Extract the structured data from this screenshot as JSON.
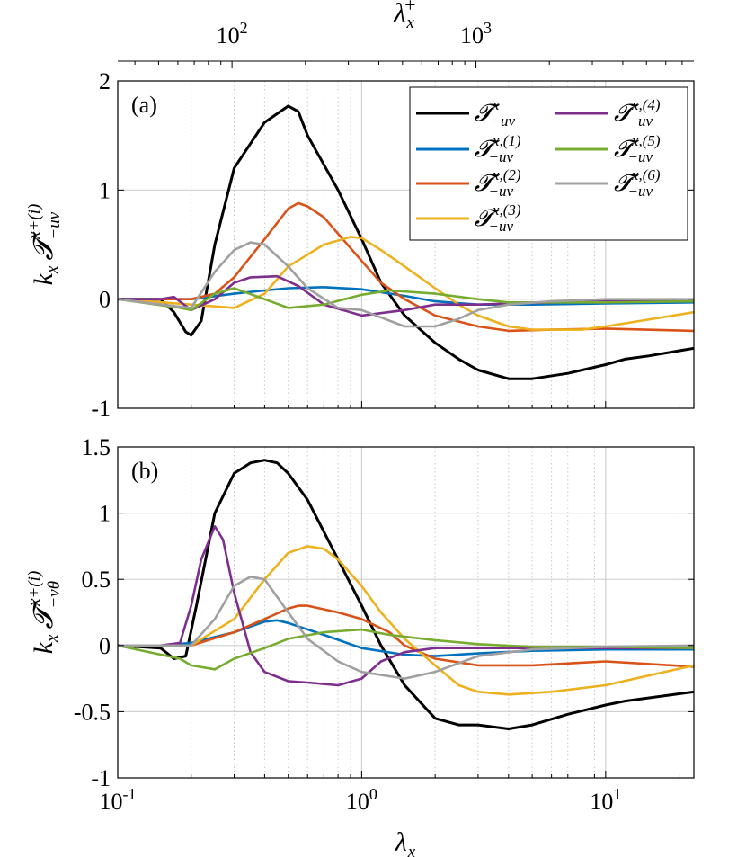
{
  "colors": {
    "total": "#000000",
    "m1": "#0072BD",
    "m2": "#D95319",
    "m3": "#EDB120",
    "m4": "#7E2F8E",
    "m5": "#77AC30",
    "m6": "#A0A0A0"
  },
  "chart_data": [
    {
      "type": "line",
      "panel_label": "(a)",
      "xscale": "log",
      "xlim": [
        0.1,
        23
      ],
      "ylim": [
        -1,
        2
      ],
      "xlabel": "λ_x",
      "ylabel": "k_x T_{-uv}^{x+(i)}",
      "ytick_values": [
        -1,
        0,
        1,
        2
      ],
      "ytick_labels": [
        "-1",
        "0",
        "1",
        "2"
      ],
      "legend_position": "top-right",
      "grid": true,
      "top_axis": {
        "xlabel": "λ_x^+",
        "tick_labels": [
          {
            "text": "10",
            "exp": "2",
            "lambda": 0.294
          },
          {
            "text": "10",
            "exp": "3",
            "lambda": 2.94
          }
        ]
      },
      "series": [
        {
          "key": "total",
          "name": "T^x_{-uv}",
          "x": [
            0.1,
            0.15,
            0.17,
            0.19,
            0.2,
            0.22,
            0.25,
            0.3,
            0.4,
            0.5,
            0.55,
            0.6,
            0.8,
            1.0,
            1.2,
            1.5,
            2,
            2.5,
            3,
            4,
            5,
            7,
            10,
            12,
            15,
            23
          ],
          "y": [
            0,
            0,
            -0.12,
            -0.3,
            -0.33,
            -0.2,
            0.5,
            1.2,
            1.62,
            1.77,
            1.72,
            1.5,
            1.0,
            0.55,
            0.15,
            -0.15,
            -0.4,
            -0.55,
            -0.65,
            -0.73,
            -0.73,
            -0.68,
            -0.6,
            -0.55,
            -0.52,
            -0.45
          ]
        },
        {
          "key": "m1",
          "name": "T^{x,(1)}_{-uv}",
          "x": [
            0.1,
            0.15,
            0.2,
            0.3,
            0.4,
            0.5,
            0.7,
            1.0,
            1.5,
            2,
            3,
            5,
            10,
            23
          ],
          "y": [
            0,
            0,
            0,
            0.05,
            0.08,
            0.1,
            0.11,
            0.09,
            0.03,
            -0.02,
            -0.05,
            -0.05,
            -0.04,
            -0.03
          ]
        },
        {
          "key": "m2",
          "name": "T^{x,(2)}_{-uv}",
          "x": [
            0.1,
            0.2,
            0.25,
            0.3,
            0.4,
            0.5,
            0.55,
            0.6,
            0.7,
            0.8,
            1.0,
            1.2,
            1.5,
            2,
            3,
            4,
            6,
            10,
            23
          ],
          "y": [
            0,
            0,
            0.05,
            0.2,
            0.55,
            0.83,
            0.88,
            0.85,
            0.75,
            0.6,
            0.35,
            0.15,
            0,
            -0.15,
            -0.25,
            -0.29,
            -0.28,
            -0.27,
            -0.29
          ]
        },
        {
          "key": "m3",
          "name": "T^{x,(3)}_{-uv}",
          "x": [
            0.1,
            0.2,
            0.3,
            0.4,
            0.5,
            0.7,
            0.9,
            1.0,
            1.2,
            1.5,
            2,
            2.5,
            3,
            4,
            5,
            8,
            10,
            23
          ],
          "y": [
            0,
            -0.05,
            -0.08,
            0.05,
            0.3,
            0.5,
            0.57,
            0.56,
            0.45,
            0.3,
            0.1,
            -0.05,
            -0.15,
            -0.25,
            -0.28,
            -0.28,
            -0.25,
            -0.12
          ]
        },
        {
          "key": "m4",
          "name": "T^{x,(4)}_{-uv}",
          "x": [
            0.1,
            0.15,
            0.17,
            0.2,
            0.25,
            0.3,
            0.35,
            0.45,
            0.55,
            0.7,
            1.0,
            1.5,
            2,
            3,
            4,
            10,
            23
          ],
          "y": [
            0,
            0,
            0.02,
            -0.1,
            0,
            0.15,
            0.2,
            0.21,
            0.12,
            -0.05,
            -0.15,
            -0.1,
            -0.05,
            -0.05,
            -0.04,
            -0.02,
            -0.02
          ]
        },
        {
          "key": "m5",
          "name": "T^{x,(5)}_{-uv}",
          "x": [
            0.1,
            0.18,
            0.2,
            0.25,
            0.3,
            0.4,
            0.5,
            0.7,
            1.0,
            1.3,
            2,
            3,
            4,
            6,
            10,
            23
          ],
          "y": [
            0,
            -0.08,
            -0.1,
            0.05,
            0.1,
            0,
            -0.08,
            -0.05,
            0.04,
            0.08,
            0.05,
            0,
            -0.03,
            -0.03,
            -0.03,
            -0.02
          ]
        },
        {
          "key": "m6",
          "name": "T^{x,(6)}_{-uv}",
          "x": [
            0.1,
            0.15,
            0.2,
            0.25,
            0.3,
            0.35,
            0.4,
            0.5,
            0.6,
            0.8,
            1.0,
            1.5,
            2,
            2.5,
            3,
            4,
            6,
            10,
            23
          ],
          "y": [
            0,
            -0.05,
            -0.08,
            0.25,
            0.45,
            0.52,
            0.5,
            0.3,
            0.1,
            -0.08,
            -0.1,
            -0.25,
            -0.25,
            -0.18,
            -0.1,
            -0.05,
            -0.02,
            0,
            0
          ]
        }
      ]
    },
    {
      "type": "line",
      "panel_label": "(b)",
      "xscale": "log",
      "xlim": [
        0.1,
        23
      ],
      "ylim": [
        -1,
        1.5
      ],
      "xlabel": "λ_x",
      "ylabel": "k_x T_{-vθ}^{x+(i)}",
      "ytick_values": [
        -1,
        -0.5,
        0,
        0.5,
        1,
        1.5
      ],
      "ytick_labels": [
        "-1",
        "-0.5",
        "0",
        "0.5",
        "1",
        "1.5"
      ],
      "grid": true,
      "xtick_labels": [
        {
          "text": "10",
          "exp": "-1",
          "lambda": 0.1
        },
        {
          "text": "10",
          "exp": "0",
          "lambda": 1
        },
        {
          "text": "10",
          "exp": "1",
          "lambda": 10
        }
      ],
      "series": [
        {
          "key": "total",
          "name": "T^x_{-vθ}",
          "x": [
            0.1,
            0.15,
            0.17,
            0.19,
            0.21,
            0.25,
            0.3,
            0.35,
            0.4,
            0.45,
            0.5,
            0.6,
            0.8,
            1.0,
            1.2,
            1.5,
            2,
            2.5,
            3,
            4,
            5,
            7,
            10,
            12,
            23
          ],
          "y": [
            0,
            -0.02,
            -0.1,
            -0.08,
            0.3,
            1.0,
            1.3,
            1.38,
            1.4,
            1.38,
            1.3,
            1.1,
            0.65,
            0.3,
            0,
            -0.3,
            -0.55,
            -0.6,
            -0.6,
            -0.63,
            -0.6,
            -0.52,
            -0.45,
            -0.42,
            -0.35
          ]
        },
        {
          "key": "m1",
          "name": "T^{x,(1)}_{-vθ}",
          "x": [
            0.1,
            0.15,
            0.2,
            0.3,
            0.4,
            0.45,
            0.5,
            0.7,
            1.0,
            1.5,
            2,
            3,
            5,
            10,
            23
          ],
          "y": [
            0,
            0,
            0.02,
            0.1,
            0.18,
            0.19,
            0.17,
            0.08,
            -0.02,
            -0.07,
            -0.08,
            -0.06,
            -0.04,
            -0.03,
            -0.03
          ]
        },
        {
          "key": "m2",
          "name": "T^{x,(2)}_{-vθ}",
          "x": [
            0.1,
            0.2,
            0.3,
            0.4,
            0.5,
            0.55,
            0.6,
            0.8,
            1.0,
            1.3,
            1.5,
            2,
            3,
            5,
            10,
            23
          ],
          "y": [
            0,
            0,
            0.1,
            0.2,
            0.28,
            0.3,
            0.3,
            0.25,
            0.2,
            0.1,
            0,
            -0.1,
            -0.15,
            -0.15,
            -0.12,
            -0.16
          ]
        },
        {
          "key": "m3",
          "name": "T^{x,(3)}_{-vθ}",
          "x": [
            0.1,
            0.2,
            0.3,
            0.4,
            0.5,
            0.6,
            0.7,
            0.8,
            1.0,
            1.2,
            1.5,
            2,
            2.5,
            3,
            4,
            6,
            10,
            23
          ],
          "y": [
            0,
            0,
            0.2,
            0.5,
            0.7,
            0.75,
            0.73,
            0.65,
            0.45,
            0.25,
            0.05,
            -0.15,
            -0.3,
            -0.35,
            -0.37,
            -0.35,
            -0.3,
            -0.15
          ]
        },
        {
          "key": "m4",
          "name": "T^{x,(4)}_{-vθ}",
          "x": [
            0.1,
            0.15,
            0.18,
            0.2,
            0.22,
            0.25,
            0.27,
            0.3,
            0.35,
            0.4,
            0.5,
            0.6,
            0.8,
            1.0,
            1.2,
            1.5,
            2,
            3,
            5,
            10,
            23
          ],
          "y": [
            0,
            0,
            0.02,
            0.3,
            0.65,
            0.9,
            0.8,
            0.4,
            -0.05,
            -0.2,
            -0.27,
            -0.28,
            -0.3,
            -0.25,
            -0.12,
            -0.05,
            -0.02,
            -0.02,
            -0.02,
            -0.02,
            -0.02
          ]
        },
        {
          "key": "m5",
          "name": "T^{x,(5)}_{-vθ}",
          "x": [
            0.1,
            0.18,
            0.2,
            0.25,
            0.3,
            0.4,
            0.5,
            0.7,
            1.0,
            1.3,
            2,
            3,
            5,
            10,
            23
          ],
          "y": [
            0,
            -0.1,
            -0.15,
            -0.18,
            -0.1,
            -0.02,
            0.05,
            0.1,
            0.12,
            0.08,
            0.04,
            0.01,
            -0.01,
            -0.01,
            -0.02
          ]
        },
        {
          "key": "m6",
          "name": "T^{x,(6)}_{-vθ}",
          "x": [
            0.1,
            0.2,
            0.25,
            0.3,
            0.35,
            0.4,
            0.5,
            0.6,
            0.8,
            1.0,
            1.5,
            2,
            3,
            5,
            10,
            23
          ],
          "y": [
            0,
            0,
            0.2,
            0.45,
            0.52,
            0.5,
            0.25,
            0.05,
            -0.12,
            -0.2,
            -0.25,
            -0.2,
            -0.08,
            -0.03,
            -0.01,
            0
          ]
        }
      ]
    }
  ]
}
